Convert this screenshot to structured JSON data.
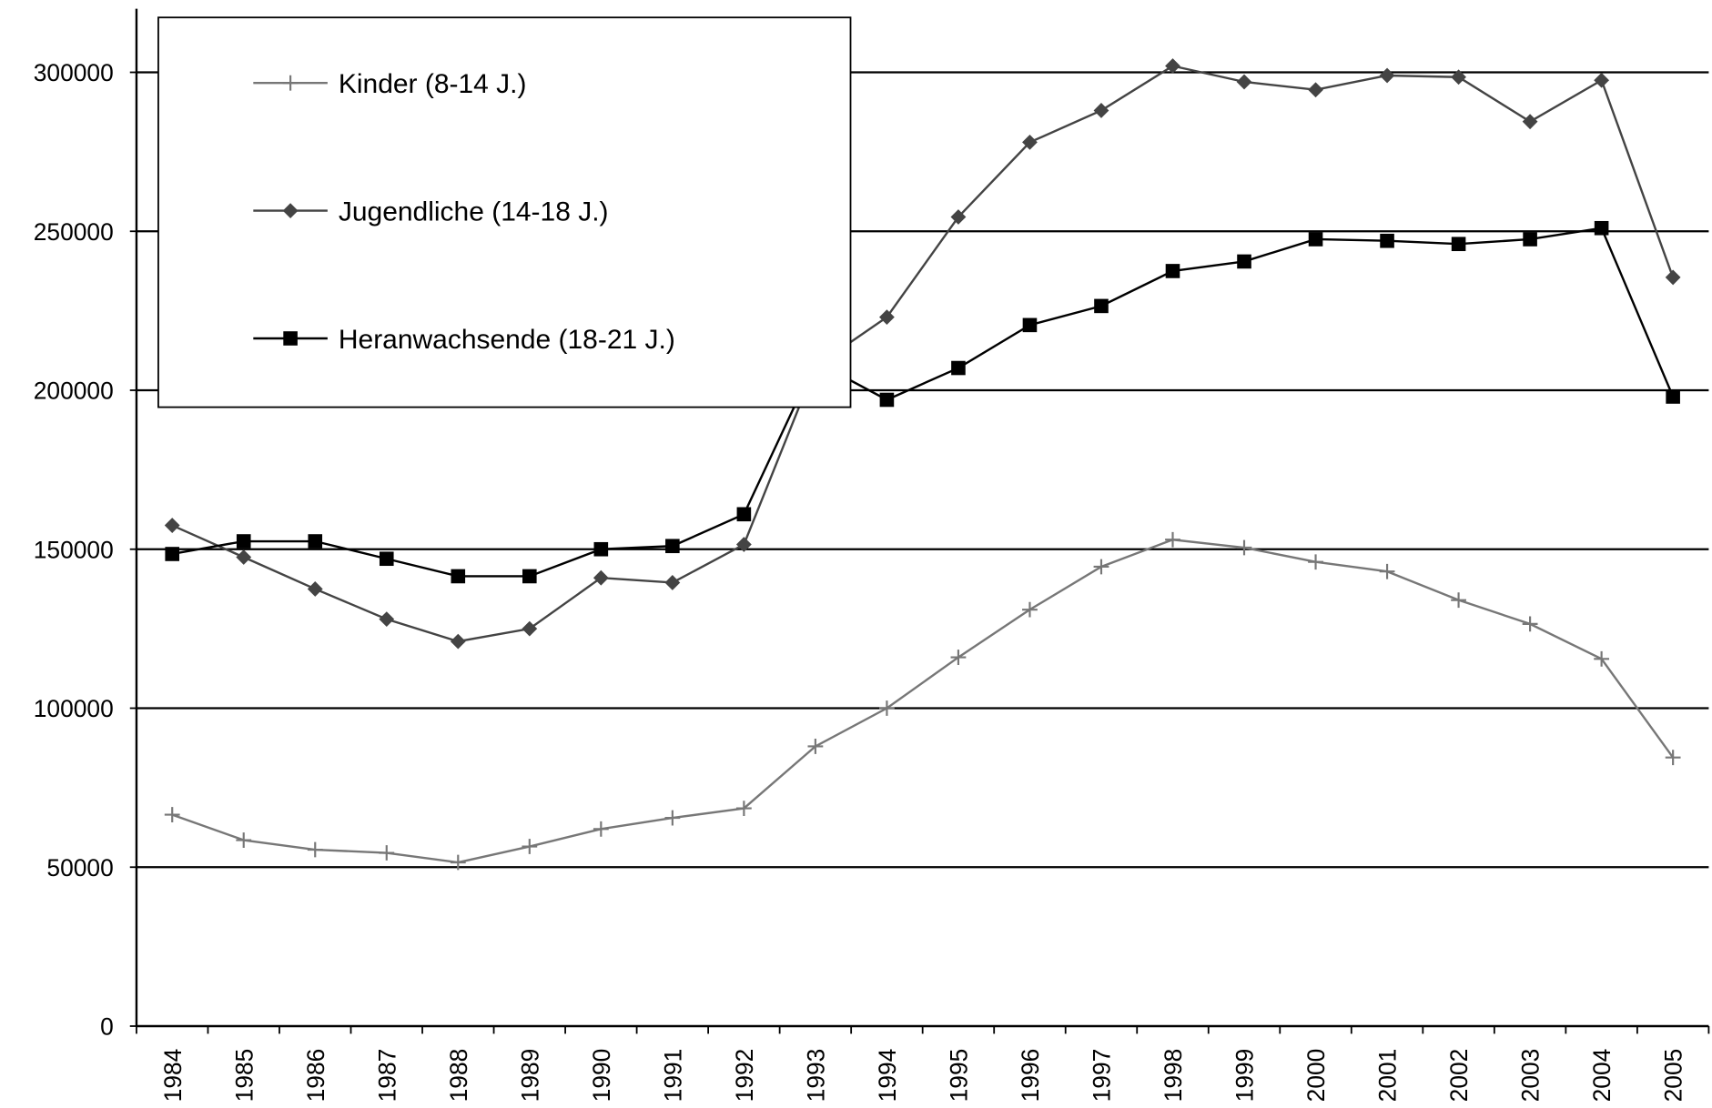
{
  "chart_data": {
    "type": "line",
    "categories": [
      "1984",
      "1985",
      "1986",
      "1987",
      "1988",
      "1989",
      "1990",
      "1991",
      "1992",
      "1993",
      "1994",
      "1995",
      "1996",
      "1997",
      "1998",
      "1999",
      "2000",
      "2001",
      "2002",
      "2003",
      "2004",
      "2005"
    ],
    "series": [
      {
        "name": "Kinder (8-14 J.)",
        "color": "#777777",
        "marker": "plus",
        "values": [
          66500,
          58500,
          55500,
          54500,
          51500,
          56500,
          62000,
          65500,
          68500,
          88000,
          100000,
          116000,
          131000,
          144500,
          153000,
          150500,
          146000,
          143000,
          134000,
          126500,
          115500,
          84500
        ]
      },
      {
        "name": "Jugendliche (14-18 J.)",
        "color": "#444444",
        "marker": "diamond",
        "values": [
          157500,
          147500,
          137500,
          128000,
          121000,
          125000,
          141000,
          139500,
          151500,
          207500,
          223000,
          254500,
          278000,
          288000,
          302000,
          297000,
          294500,
          299000,
          298500,
          284500,
          297500,
          235500
        ]
      },
      {
        "name": "Heranwachsende (18-21 J.)",
        "color": "#000000",
        "marker": "square",
        "values": [
          148500,
          152500,
          152500,
          147000,
          141500,
          141500,
          150000,
          151000,
          161000,
          209000,
          197000,
          207000,
          220500,
          226500,
          237500,
          240500,
          247500,
          247000,
          246000,
          247500,
          251000,
          198000
        ]
      }
    ],
    "ylim": [
      0,
      320000
    ],
    "yticks": [
      0,
      50000,
      100000,
      150000,
      200000,
      250000,
      300000
    ],
    "grid": true,
    "legend": "top-left"
  }
}
